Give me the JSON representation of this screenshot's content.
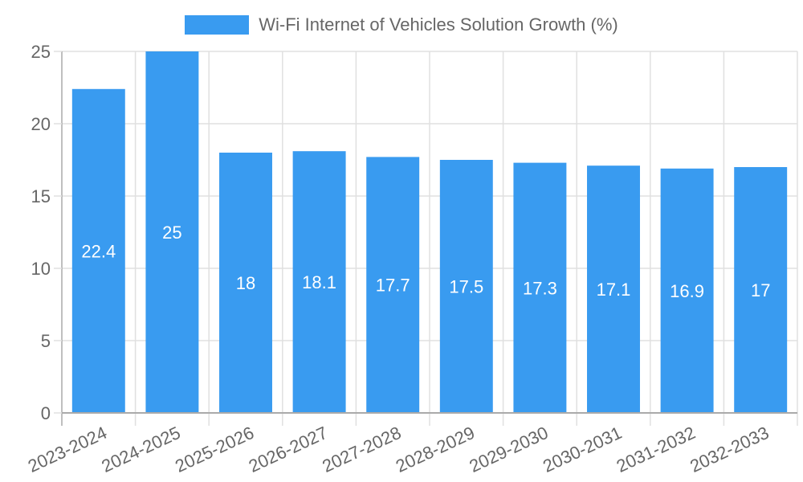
{
  "chart_data": {
    "type": "bar",
    "title": "",
    "categories": [
      "2023-2024",
      "2024-2025",
      "2025-2026",
      "2026-2027",
      "2027-2028",
      "2028-2029",
      "2029-2030",
      "2030-2031",
      "2031-2032",
      "2032-2033"
    ],
    "series": [
      {
        "name": "Wi-Fi Internet of Vehicles Solution Growth (%)",
        "values": [
          22.4,
          25,
          18,
          18.1,
          17.7,
          17.5,
          17.3,
          17.1,
          16.9,
          17
        ],
        "color": "#399BF0"
      }
    ],
    "data_labels": [
      "22.4",
      "25",
      "18",
      "18.1",
      "17.7",
      "17.5",
      "17.3",
      "17.1",
      "16.9",
      "17"
    ],
    "xlabel": "",
    "ylabel": "",
    "ylim": [
      0,
      25
    ],
    "yticks": [
      0,
      5,
      10,
      15,
      20,
      25
    ],
    "grid": true,
    "legend_position": "top"
  },
  "legend": {
    "label": "Wi-Fi Internet of Vehicles Solution Growth (%)",
    "color": "#399BF0"
  }
}
